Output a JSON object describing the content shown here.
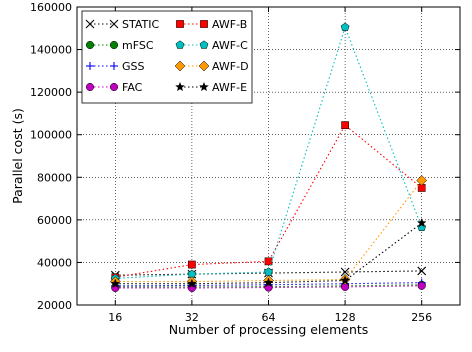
{
  "chart_data": {
    "type": "line",
    "title": "",
    "xlabel": "Number of processing elements",
    "ylabel": "Parallel cost (s)",
    "x_scale": "categorical",
    "categories": [
      "16",
      "32",
      "64",
      "128",
      "256"
    ],
    "ylim": [
      20000,
      160000
    ],
    "yticks": [
      20000,
      40000,
      60000,
      80000,
      100000,
      120000,
      140000,
      160000
    ],
    "ytick_labels": [
      "20000",
      "40000",
      "60000",
      "80000",
      "100000",
      "120000",
      "140000",
      "160000"
    ],
    "grid": true,
    "legend_position": "top-left",
    "series": [
      {
        "name": "STATIC",
        "color": "#000000",
        "marker": "x",
        "values": [
          34000,
          34500,
          35000,
          35500,
          36000
        ]
      },
      {
        "name": "mFSC",
        "color": "#008000",
        "marker": "circle",
        "values": [
          28500,
          28500,
          28600,
          29000,
          29500
        ]
      },
      {
        "name": "GSS",
        "color": "#0000ff",
        "marker": "plus",
        "values": [
          29000,
          29200,
          29500,
          30000,
          30500
        ]
      },
      {
        "name": "FAC",
        "color": "#bf00bf",
        "marker": "circle",
        "values": [
          28000,
          28000,
          28200,
          28500,
          29000
        ]
      },
      {
        "name": "AWF-B",
        "color": "#ff0000",
        "marker": "square",
        "values": [
          33000,
          39000,
          40500,
          104500,
          75000
        ]
      },
      {
        "name": "AWF-C",
        "color": "#00bfbf",
        "marker": "pentagon",
        "values": [
          32500,
          34500,
          35500,
          150500,
          56500
        ]
      },
      {
        "name": "AWF-D",
        "color": "#ff9900",
        "marker": "diamond",
        "values": [
          31000,
          31000,
          31500,
          32000,
          78500
        ]
      },
      {
        "name": "AWF-E",
        "color": "#000000",
        "marker": "star",
        "values": [
          30000,
          30000,
          30500,
          31500,
          58500
        ]
      }
    ]
  }
}
